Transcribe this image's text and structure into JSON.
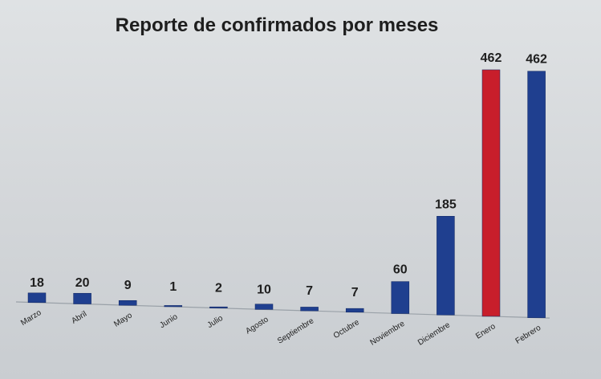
{
  "chart_data": {
    "type": "bar",
    "title": "Reporte de confirmados por meses",
    "categories": [
      "Marzo",
      "Abril",
      "Mayo",
      "Junio",
      "Julio",
      "Agosto",
      "Septiembre",
      "Octubre",
      "Noviembre",
      "Diciembre",
      "Enero",
      "Febrero"
    ],
    "values": [
      18,
      20,
      9,
      1,
      2,
      10,
      7,
      7,
      60,
      185,
      462,
      462
    ],
    "ylim": [
      0,
      462
    ],
    "grid": false,
    "legend": "none",
    "colors": {
      "default_bar": "#1f3f8f",
      "highlight_bar": "#c81e2b",
      "axis": "#9aa1a8",
      "label_text": "#1e1e1e"
    },
    "highlight_index": 10
  }
}
